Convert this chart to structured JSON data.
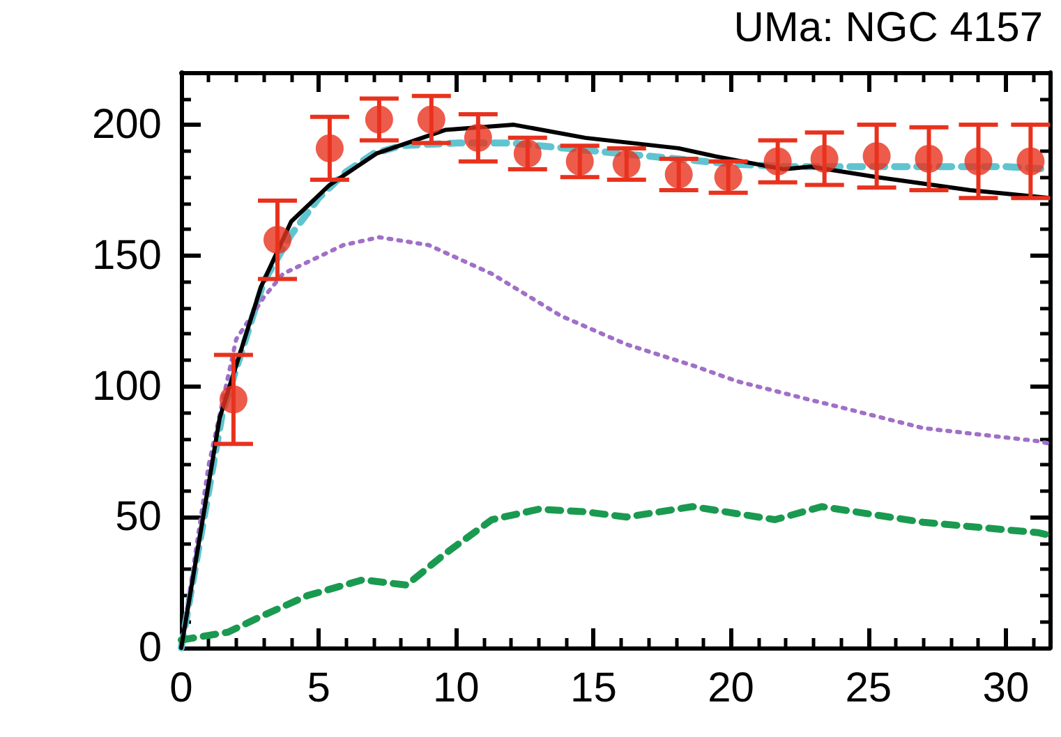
{
  "chart_data": {
    "type": "line",
    "title": "UMa: NGC 4157",
    "xlim": [
      0,
      31.6
    ],
    "xticks": [
      0,
      5,
      10,
      15,
      20,
      25,
      30
    ],
    "ylim": [
      0,
      220
    ],
    "yticks": [
      0,
      50,
      100,
      150,
      200
    ],
    "series": [
      {
        "color": "#5fc4d0",
        "line_style": "dashed",
        "x": [
          0,
          1.5,
          3,
          4,
          5,
          6,
          7,
          8,
          10,
          12,
          14,
          16,
          18,
          20,
          22,
          24,
          26,
          28,
          30,
          31.6
        ],
        "values": [
          0,
          90,
          140,
          158,
          172,
          182,
          189,
          192,
          193,
          193,
          191,
          189,
          187,
          185,
          184,
          184,
          184,
          184,
          184,
          183
        ]
      },
      {
        "color": "#a070c8",
        "line_style": "dotted",
        "x": [
          0,
          1,
          2,
          3,
          3.7,
          5.9,
          7.2,
          9,
          11.3,
          13.8,
          16.2,
          18.6,
          20.2,
          22.8,
          23.6,
          27,
          31.2,
          31.6
        ],
        "values": [
          0,
          70,
          118,
          134,
          143,
          154,
          157,
          154,
          143,
          127,
          116,
          108,
          102,
          95,
          93,
          84,
          79,
          78
        ]
      },
      {
        "color": "#1a9a50",
        "line_style": "dashed",
        "x": [
          0,
          1.7,
          2.9,
          4.6,
          6.6,
          8.2,
          9.6,
          11.3,
          13,
          14.7,
          16.2,
          18.6,
          21.6,
          23.3,
          27,
          31.2,
          31.6
        ],
        "values": [
          3,
          6,
          12,
          20,
          26,
          24,
          36,
          49,
          53,
          52,
          50,
          54,
          49,
          54,
          48,
          44,
          43
        ]
      },
      {
        "color": "#000000",
        "line_style": "solid",
        "x": [
          0,
          1.4,
          2.9,
          4,
          5.4,
          7.1,
          9.6,
          12.1,
          14.7,
          18.1,
          19.4,
          21.9,
          22.9,
          25.3,
          28.7,
          31.6
        ],
        "values": [
          0,
          88,
          138,
          163,
          177,
          189,
          198,
          200,
          195,
          191,
          188,
          183,
          184,
          180,
          175,
          172
        ]
      },
      {
        "type": "scatter",
        "color": "#e8321e",
        "marker": "circle",
        "x": [
          1.9,
          3.5,
          5.4,
          7.2,
          9.1,
          10.8,
          12.6,
          14.5,
          16.2,
          18.1,
          19.9,
          21.7,
          23.4,
          25.3,
          27.2,
          29,
          30.9
        ],
        "values": [
          95,
          156,
          191,
          202,
          202,
          195,
          189,
          186,
          185,
          181,
          180,
          186,
          187,
          188,
          187,
          186,
          186
        ],
        "errors": [
          17,
          15,
          12,
          8,
          9,
          9,
          6,
          6,
          6,
          6,
          6,
          8,
          10,
          12,
          12,
          14,
          14
        ]
      }
    ]
  }
}
